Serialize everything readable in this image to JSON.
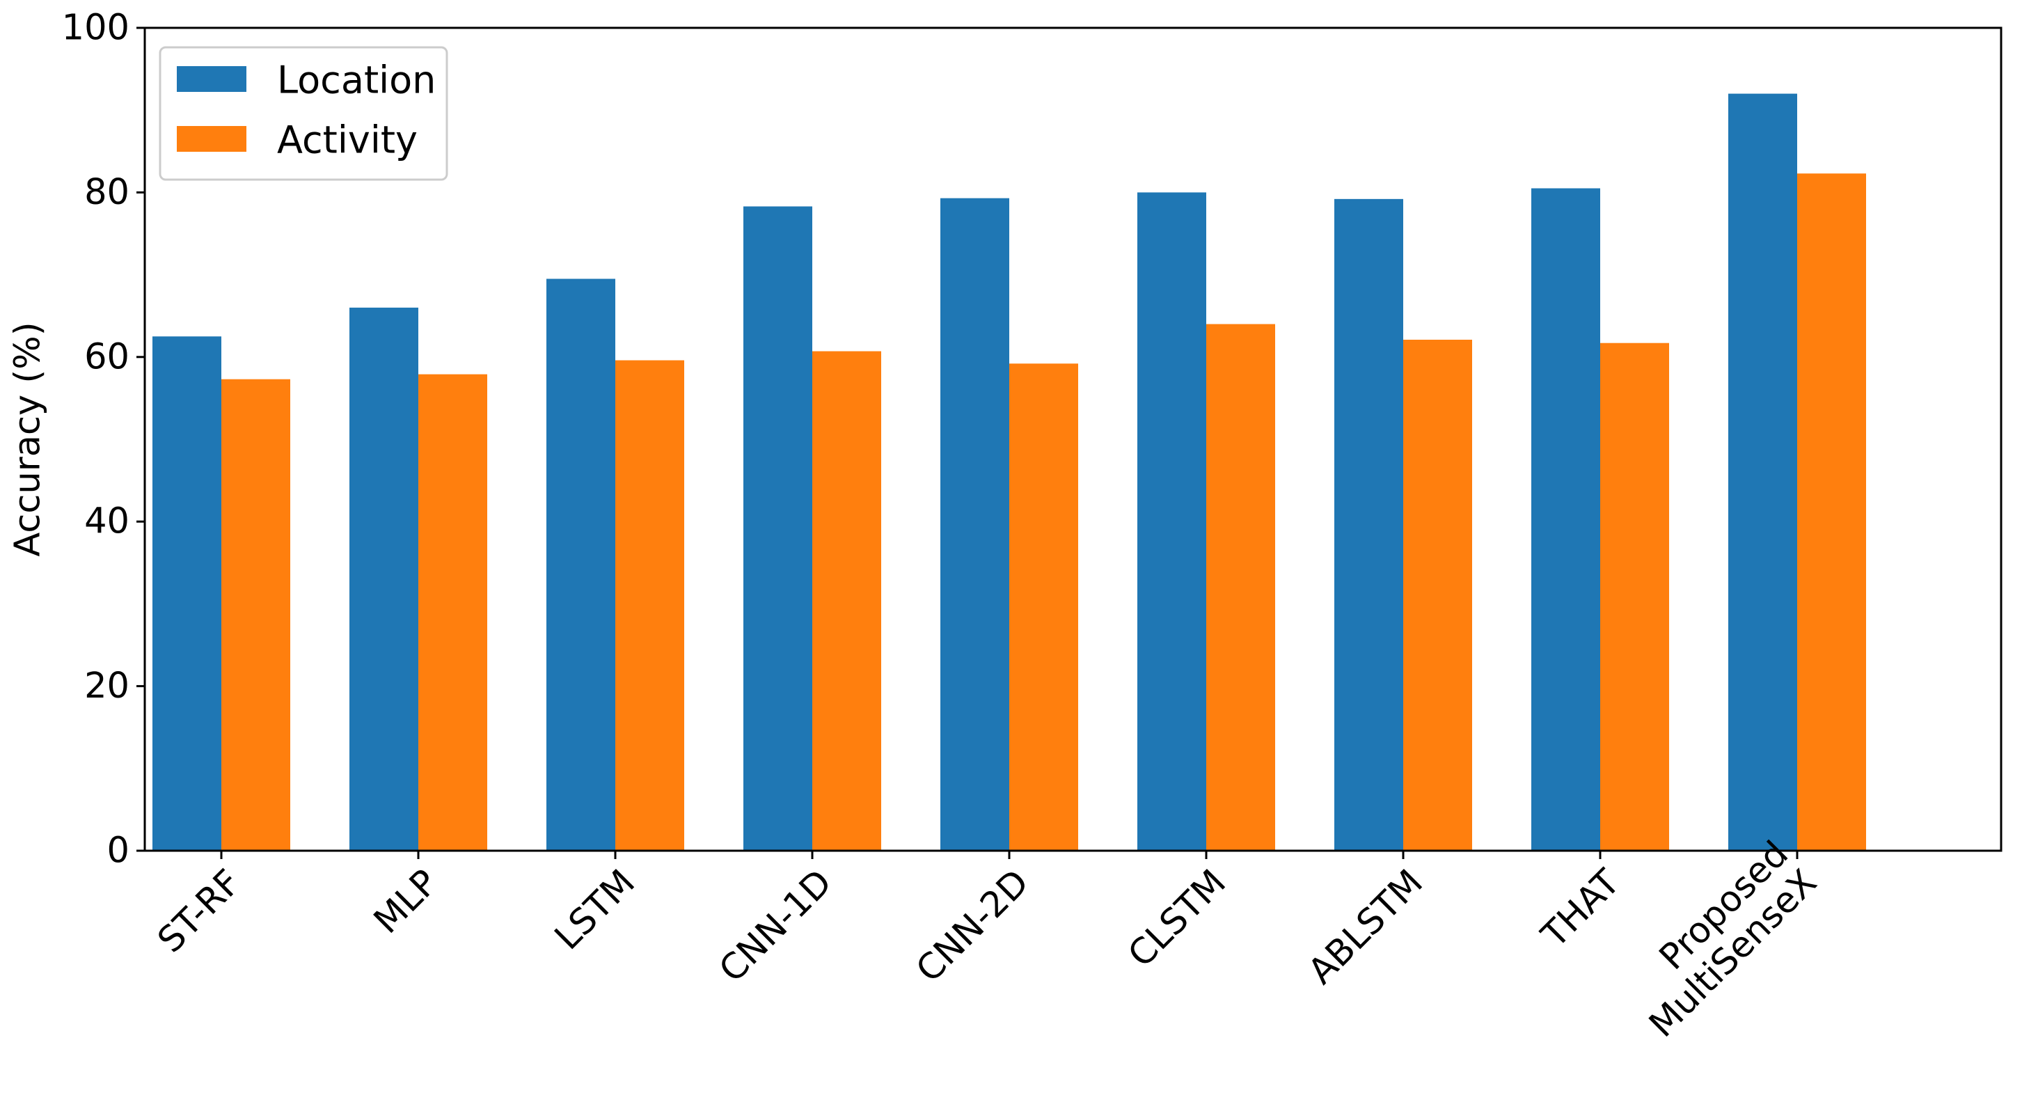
{
  "chart_data": {
    "type": "bar",
    "title": "",
    "xlabel": "",
    "ylabel": "Accuracy (%)",
    "ylim": [
      0,
      100
    ],
    "yticks": [
      0,
      20,
      40,
      60,
      80,
      100
    ],
    "grid": false,
    "legend_position": "top-left",
    "categories": [
      "ST-RF",
      "MLP",
      "LSTM",
      "CNN-1D",
      "CNN-2D",
      "CLSTM",
      "ABLSTM",
      "THAT",
      "Proposed\nMultiSenseX"
    ],
    "series": [
      {
        "name": "Location",
        "color": "#1f77b4",
        "values": [
          62.5,
          66.0,
          69.5,
          78.3,
          79.3,
          80.0,
          79.2,
          80.5,
          92.0
        ]
      },
      {
        "name": "Activity",
        "color": "#ff7f0e",
        "values": [
          57.3,
          57.9,
          59.6,
          60.7,
          59.2,
          64.0,
          62.1,
          61.7,
          82.3
        ]
      }
    ]
  }
}
